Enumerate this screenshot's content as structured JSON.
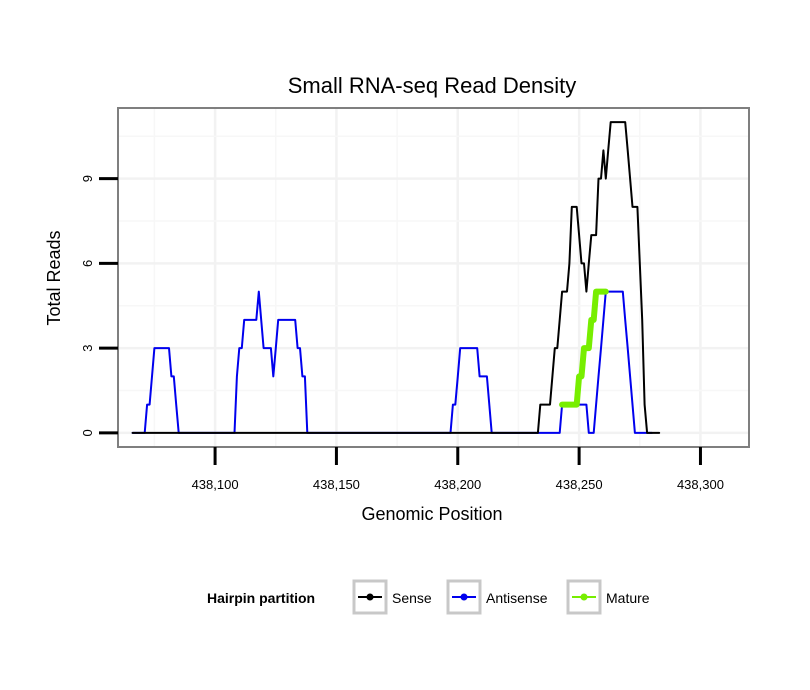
{
  "chart_data": {
    "type": "line",
    "title": "Small RNA-seq Read Density",
    "xlabel": "Genomic Position",
    "ylabel": "Total Reads",
    "xlim": [
      438060,
      438320
    ],
    "ylim": [
      -0.5,
      11.5
    ],
    "x_ticks": [
      438100,
      438150,
      438200,
      438250,
      438300
    ],
    "x_tick_labels": [
      "438,100",
      "438,150",
      "438,200",
      "438,250",
      "438,300"
    ],
    "y_ticks": [
      0,
      3,
      6,
      9
    ],
    "y_tick_labels": [
      "0",
      "3",
      "6",
      "9"
    ],
    "legend": {
      "title": "Hairpin partition",
      "position": "bottom",
      "entries": [
        {
          "label": "Sense",
          "color": "#000000"
        },
        {
          "label": "Antisense",
          "color": "#0000ee"
        },
        {
          "label": "Mature",
          "color": "#77ee00"
        }
      ]
    },
    "series": [
      {
        "name": "Antisense",
        "color": "#0000ee",
        "points": [
          [
            438066,
            0
          ],
          [
            438071,
            0
          ],
          [
            438072,
            1
          ],
          [
            438073,
            1
          ],
          [
            438074,
            2
          ],
          [
            438075,
            3
          ],
          [
            438076,
            3
          ],
          [
            438077,
            3
          ],
          [
            438078,
            3
          ],
          [
            438079,
            3
          ],
          [
            438080,
            3
          ],
          [
            438081,
            3
          ],
          [
            438082,
            2
          ],
          [
            438083,
            2
          ],
          [
            438084,
            1
          ],
          [
            438085,
            0
          ],
          [
            438086,
            0
          ],
          [
            438108,
            0
          ],
          [
            438109,
            2
          ],
          [
            438110,
            3
          ],
          [
            438111,
            3
          ],
          [
            438112,
            4
          ],
          [
            438113,
            4
          ],
          [
            438114,
            4
          ],
          [
            438115,
            4
          ],
          [
            438116,
            4
          ],
          [
            438117,
            4
          ],
          [
            438118,
            5
          ],
          [
            438119,
            4
          ],
          [
            438120,
            3
          ],
          [
            438121,
            3
          ],
          [
            438122,
            3
          ],
          [
            438123,
            3
          ],
          [
            438124,
            2
          ],
          [
            438125,
            3
          ],
          [
            438126,
            4
          ],
          [
            438127,
            4
          ],
          [
            438128,
            4
          ],
          [
            438129,
            4
          ],
          [
            438130,
            4
          ],
          [
            438131,
            4
          ],
          [
            438132,
            4
          ],
          [
            438133,
            4
          ],
          [
            438134,
            3
          ],
          [
            438135,
            3
          ],
          [
            438136,
            2
          ],
          [
            438137,
            2
          ],
          [
            438138,
            0
          ],
          [
            438139,
            0
          ],
          [
            438197,
            0
          ],
          [
            438198,
            1
          ],
          [
            438199,
            1
          ],
          [
            438200,
            2
          ],
          [
            438201,
            3
          ],
          [
            438202,
            3
          ],
          [
            438203,
            3
          ],
          [
            438204,
            3
          ],
          [
            438205,
            3
          ],
          [
            438206,
            3
          ],
          [
            438207,
            3
          ],
          [
            438208,
            3
          ],
          [
            438209,
            2
          ],
          [
            438210,
            2
          ],
          [
            438211,
            2
          ],
          [
            438212,
            2
          ],
          [
            438213,
            1
          ],
          [
            438214,
            0
          ],
          [
            438215,
            0
          ],
          [
            438242,
            0
          ],
          [
            438243,
            1
          ],
          [
            438244,
            1
          ],
          [
            438245,
            1
          ],
          [
            438246,
            1
          ],
          [
            438247,
            1
          ],
          [
            438248,
            1
          ],
          [
            438249,
            1
          ],
          [
            438250,
            1
          ],
          [
            438251,
            1
          ],
          [
            438252,
            1
          ],
          [
            438253,
            1
          ],
          [
            438254,
            0
          ],
          [
            438255,
            0
          ],
          [
            438256,
            0
          ],
          [
            438257,
            1
          ],
          [
            438258,
            2
          ],
          [
            438259,
            3
          ],
          [
            438260,
            4
          ],
          [
            438261,
            5
          ],
          [
            438262,
            5
          ],
          [
            438263,
            5
          ],
          [
            438264,
            5
          ],
          [
            438265,
            5
          ],
          [
            438266,
            5
          ],
          [
            438267,
            5
          ],
          [
            438268,
            5
          ],
          [
            438269,
            4
          ],
          [
            438270,
            3
          ],
          [
            438271,
            2
          ],
          [
            438272,
            1
          ],
          [
            438273,
            0
          ],
          [
            438274,
            0
          ],
          [
            438275,
            0
          ],
          [
            438276,
            0
          ],
          [
            438277,
            0
          ],
          [
            438278,
            0
          ],
          [
            438279,
            0
          ],
          [
            438280,
            0
          ]
        ]
      },
      {
        "name": "Sense",
        "color": "#000000",
        "points": [
          [
            438066,
            0
          ],
          [
            438233,
            0
          ],
          [
            438234,
            1
          ],
          [
            438235,
            1
          ],
          [
            438236,
            1
          ],
          [
            438237,
            1
          ],
          [
            438238,
            1
          ],
          [
            438239,
            2
          ],
          [
            438240,
            3
          ],
          [
            438241,
            3
          ],
          [
            438242,
            4
          ],
          [
            438243,
            5
          ],
          [
            438244,
            5
          ],
          [
            438245,
            5
          ],
          [
            438246,
            6
          ],
          [
            438247,
            8
          ],
          [
            438248,
            8
          ],
          [
            438249,
            8
          ],
          [
            438250,
            7
          ],
          [
            438251,
            6
          ],
          [
            438252,
            6
          ],
          [
            438253,
            5
          ],
          [
            438254,
            6
          ],
          [
            438255,
            7
          ],
          [
            438256,
            7
          ],
          [
            438257,
            7
          ],
          [
            438258,
            9
          ],
          [
            438259,
            9
          ],
          [
            438260,
            10
          ],
          [
            438261,
            9
          ],
          [
            438262,
            10
          ],
          [
            438263,
            11
          ],
          [
            438264,
            11
          ],
          [
            438265,
            11
          ],
          [
            438266,
            11
          ],
          [
            438267,
            11
          ],
          [
            438268,
            11
          ],
          [
            438269,
            11
          ],
          [
            438270,
            10
          ],
          [
            438271,
            9
          ],
          [
            438272,
            8
          ],
          [
            438273,
            8
          ],
          [
            438274,
            8
          ],
          [
            438275,
            6
          ],
          [
            438276,
            4
          ],
          [
            438277,
            1
          ],
          [
            438278,
            0
          ],
          [
            438283,
            0
          ]
        ]
      },
      {
        "name": "Mature",
        "color": "#77ee00",
        "points": [
          [
            438243,
            1
          ],
          [
            438244,
            1
          ],
          [
            438245,
            1
          ],
          [
            438246,
            1
          ],
          [
            438247,
            1
          ],
          [
            438248,
            1
          ],
          [
            438249,
            1
          ],
          [
            438250,
            2
          ],
          [
            438251,
            2
          ],
          [
            438252,
            3
          ],
          [
            438253,
            3
          ],
          [
            438254,
            3
          ],
          [
            438255,
            4
          ],
          [
            438256,
            4
          ],
          [
            438257,
            5
          ],
          [
            438258,
            5
          ],
          [
            438259,
            5
          ],
          [
            438260,
            5
          ],
          [
            438261,
            5
          ]
        ]
      }
    ]
  }
}
